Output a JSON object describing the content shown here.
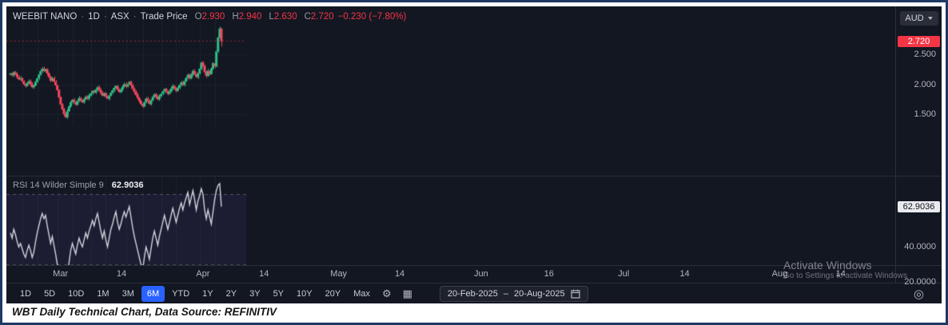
{
  "colors": {
    "up": "#2dbd85",
    "down": "#f6465d",
    "accent": "#2962ff",
    "bg": "#131722",
    "grid": "#1e222d",
    "border": "#2a2e39",
    "price_tag": "#f23645",
    "rsi_line": "#d1d4dc"
  },
  "legend": {
    "symbol": "WEEBIT NANO",
    "separator": "·",
    "timeframe": "1D",
    "exchange": "ASX",
    "series_type": "Trade Price",
    "ohlc": [
      {
        "label": "O",
        "value": "2.930"
      },
      {
        "label": "H",
        "value": "2.940"
      },
      {
        "label": "L",
        "value": "2.630"
      },
      {
        "label": "C",
        "value": "2.720"
      }
    ],
    "change": "−0.230 (−7.80%)"
  },
  "currency": {
    "label": "AUD"
  },
  "price_axis": {
    "current_label": "2.720",
    "current_value": 2.72,
    "ticks": [
      {
        "label": "2.500",
        "value": 2.5
      },
      {
        "label": "2.000",
        "value": 2.0
      },
      {
        "label": "1.500",
        "value": 1.5
      }
    ]
  },
  "rsi_pane": {
    "title": "RSI 14 Wilder Simple 9",
    "value": "62.9036",
    "current_value": 62.9036,
    "ticks": [
      {
        "label": "40.0000",
        "value": 40
      },
      {
        "label": "20.0000",
        "value": 20
      }
    ]
  },
  "time_axis": {
    "labels": [
      {
        "text": "Mar",
        "idx": 7
      },
      {
        "text": "14",
        "idx": 16
      },
      {
        "text": "Apr",
        "idx": 28
      },
      {
        "text": "14",
        "idx": 37
      },
      {
        "text": "May",
        "idx": 48
      },
      {
        "text": "14",
        "idx": 57
      },
      {
        "text": "Jun",
        "idx": 69
      },
      {
        "text": "16",
        "idx": 79
      },
      {
        "text": "Jul",
        "idx": 90
      },
      {
        "text": "14",
        "idx": 99
      },
      {
        "text": "Aug",
        "idx": 113
      },
      {
        "text": "14",
        "idx": 122
      }
    ]
  },
  "toolbar": {
    "ranges": [
      "1D",
      "5D",
      "10D",
      "1M",
      "3M",
      "6M",
      "YTD",
      "1Y",
      "2Y",
      "3Y",
      "5Y",
      "10Y",
      "20Y",
      "Max"
    ],
    "active_range": "6M",
    "date_from": "20-Feb-2025",
    "date_separator": "–",
    "date_to": "20-Aug-2025"
  },
  "icons": {
    "settings": "⚙",
    "layout_grid": "▦",
    "scroll_target": "◎"
  },
  "watermark": {
    "line1": "Activate Windows",
    "line2": "Go to Settings to activate Windows"
  },
  "caption": "WBT Daily Technical Chart, Data Source: REFINITIV",
  "chart_data": [
    {
      "type": "candlestick",
      "title": "WEEBIT NANO · 1D · ASX · Trade Price",
      "ylabel": "AUD",
      "ylim": [
        1.3,
        3.3
      ],
      "x_start": "20-Feb-2025",
      "x_end": "20-Aug-2025",
      "first_open": 2.16,
      "closes": [
        2.18,
        2.15,
        2.2,
        2.17,
        2.12,
        2.08,
        2.1,
        2.05,
        2.0,
        1.97,
        2.02,
        2.05,
        2.0,
        1.95,
        1.98,
        2.04,
        2.1,
        2.16,
        2.22,
        2.26,
        2.22,
        2.25,
        2.18,
        2.12,
        2.06,
        2.1,
        2.04,
        1.98,
        1.9,
        1.78,
        1.66,
        1.58,
        1.5,
        1.45,
        1.55,
        1.63,
        1.7,
        1.74,
        1.7,
        1.66,
        1.72,
        1.77,
        1.73,
        1.7,
        1.75,
        1.79,
        1.76,
        1.81,
        1.85,
        1.89,
        1.86,
        1.91,
        1.95,
        1.9,
        1.85,
        1.81,
        1.85,
        1.8,
        1.76,
        1.81,
        1.86,
        1.9,
        1.94,
        1.97,
        1.91,
        1.87,
        1.91,
        1.96,
        2.0,
        1.96,
        2.0,
        2.04,
        1.98,
        1.92,
        1.87,
        1.82,
        1.77,
        1.72,
        1.67,
        1.63,
        1.7,
        1.76,
        1.72,
        1.67,
        1.73,
        1.79,
        1.83,
        1.79,
        1.75,
        1.8,
        1.84,
        1.88,
        1.92,
        1.88,
        1.84,
        1.88,
        1.93,
        1.97,
        1.93,
        1.89,
        1.94,
        1.99,
        2.03,
        1.99,
        2.05,
        2.11,
        2.16,
        2.1,
        2.16,
        2.22,
        2.17,
        2.12,
        2.18,
        2.26,
        2.36,
        2.3,
        2.2,
        2.14,
        2.22,
        2.17,
        2.26,
        2.35,
        2.3,
        2.55,
        2.78,
        2.93,
        2.72
      ],
      "last_candle": {
        "open": 2.93,
        "high": 2.94,
        "low": 2.63,
        "close": 2.72
      },
      "last_change": "-0.230",
      "last_change_pct": "-7.80%"
    },
    {
      "type": "line",
      "title": "RSI 14 Wilder Simple 9",
      "ylim": [
        12,
        80
      ],
      "overbought": 70,
      "oversold": 30,
      "current": 62.9036,
      "values": [
        48,
        45,
        50,
        47,
        43,
        40,
        42,
        39,
        36,
        34,
        38,
        41,
        38,
        34,
        37,
        43,
        48,
        52,
        56,
        59,
        56,
        58,
        52,
        47,
        42,
        46,
        41,
        36,
        30,
        25,
        21,
        19,
        17,
        16,
        24,
        31,
        38,
        42,
        39,
        36,
        41,
        45,
        42,
        40,
        44,
        48,
        45,
        49,
        52,
        55,
        52,
        56,
        59,
        54,
        49,
        45,
        49,
        44,
        40,
        45,
        50,
        53,
        57,
        60,
        54,
        50,
        53,
        57,
        60,
        57,
        60,
        63,
        57,
        51,
        46,
        42,
        38,
        34,
        30,
        27,
        34,
        40,
        37,
        33,
        39,
        45,
        49,
        45,
        41,
        46,
        50,
        54,
        58,
        54,
        50,
        54,
        58,
        62,
        58,
        54,
        58,
        62,
        65,
        61,
        65,
        68,
        71,
        64,
        68,
        72,
        67,
        61,
        66,
        69,
        73,
        70,
        61,
        56,
        61,
        57,
        53,
        60,
        67,
        72,
        75,
        76,
        62.9
      ]
    }
  ]
}
